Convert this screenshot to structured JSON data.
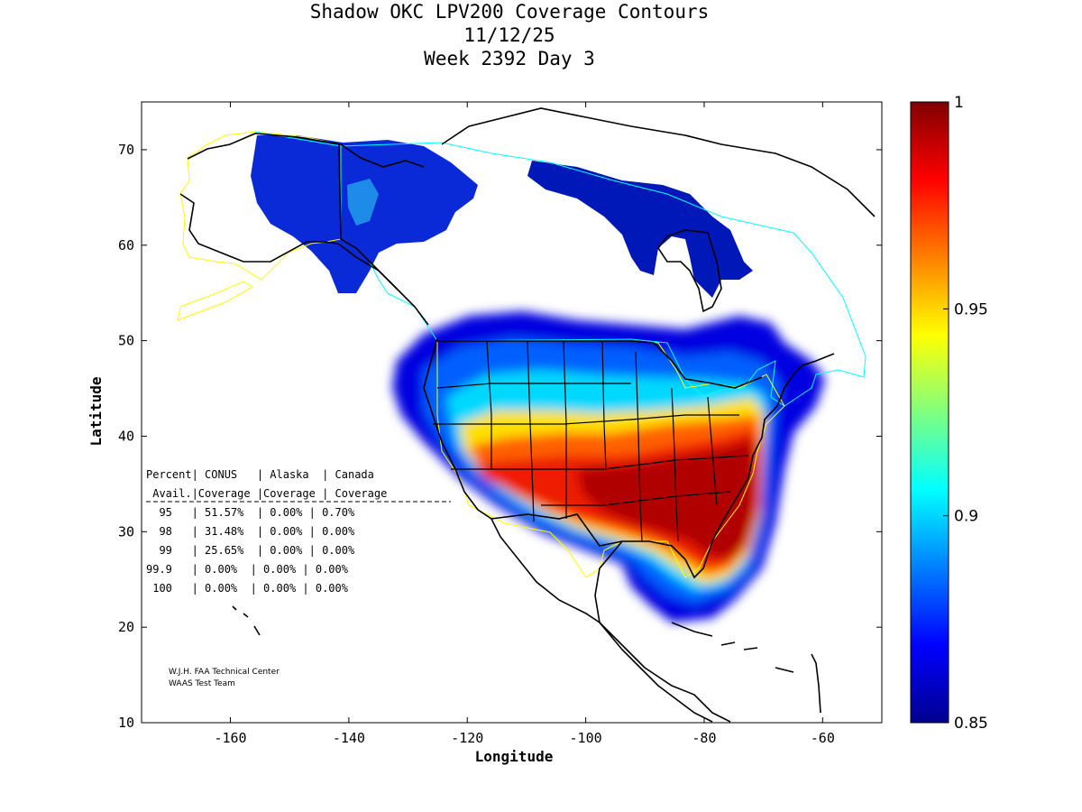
{
  "header": {
    "title_line1": "Shadow OKC LPV200 Coverage Contours",
    "title_line2": "11/12/25",
    "title_line3": "Week 2392 Day 3"
  },
  "axes": {
    "xlabel": "Longitude",
    "ylabel": "Latitude",
    "xlim": [
      -175,
      -50
    ],
    "ylim": [
      10,
      75
    ],
    "xticks": [
      "-160",
      "-140",
      "-120",
      "-100",
      "-80",
      "-60"
    ],
    "yticks": [
      "10",
      "20",
      "30",
      "40",
      "50",
      "60",
      "70"
    ]
  },
  "colorbar": {
    "range": [
      0.85,
      1.0
    ],
    "colormap": "jet",
    "ticks": [
      "0.85",
      "0.9",
      "0.95",
      "1"
    ]
  },
  "stats_table": {
    "header1": "Percent| CONUS   | Alaska  | Canada",
    "header2": " Avail.|Coverage |Coverage | Coverage",
    "rows": [
      "  95   | 51.57%  | 0.00% | 0.70%",
      "  98   | 31.48%  | 0.00% | 0.00%",
      "  99   | 25.65%  | 0.00% | 0.00%",
      "99.9   | 0.00%  | 0.00% | 0.00%",
      " 100   | 0.00%  | 0.00% | 0.00%"
    ]
  },
  "credits": {
    "line1": "W.J.H. FAA Technical Center",
    "line2": "WAAS Test Team"
  },
  "colors": {
    "max": "#800000",
    "min": "#00008f",
    "alaska_boundary": "#ffff00",
    "canada_boundary": "#00ffff",
    "conus_boundary": "#ffff00"
  }
}
